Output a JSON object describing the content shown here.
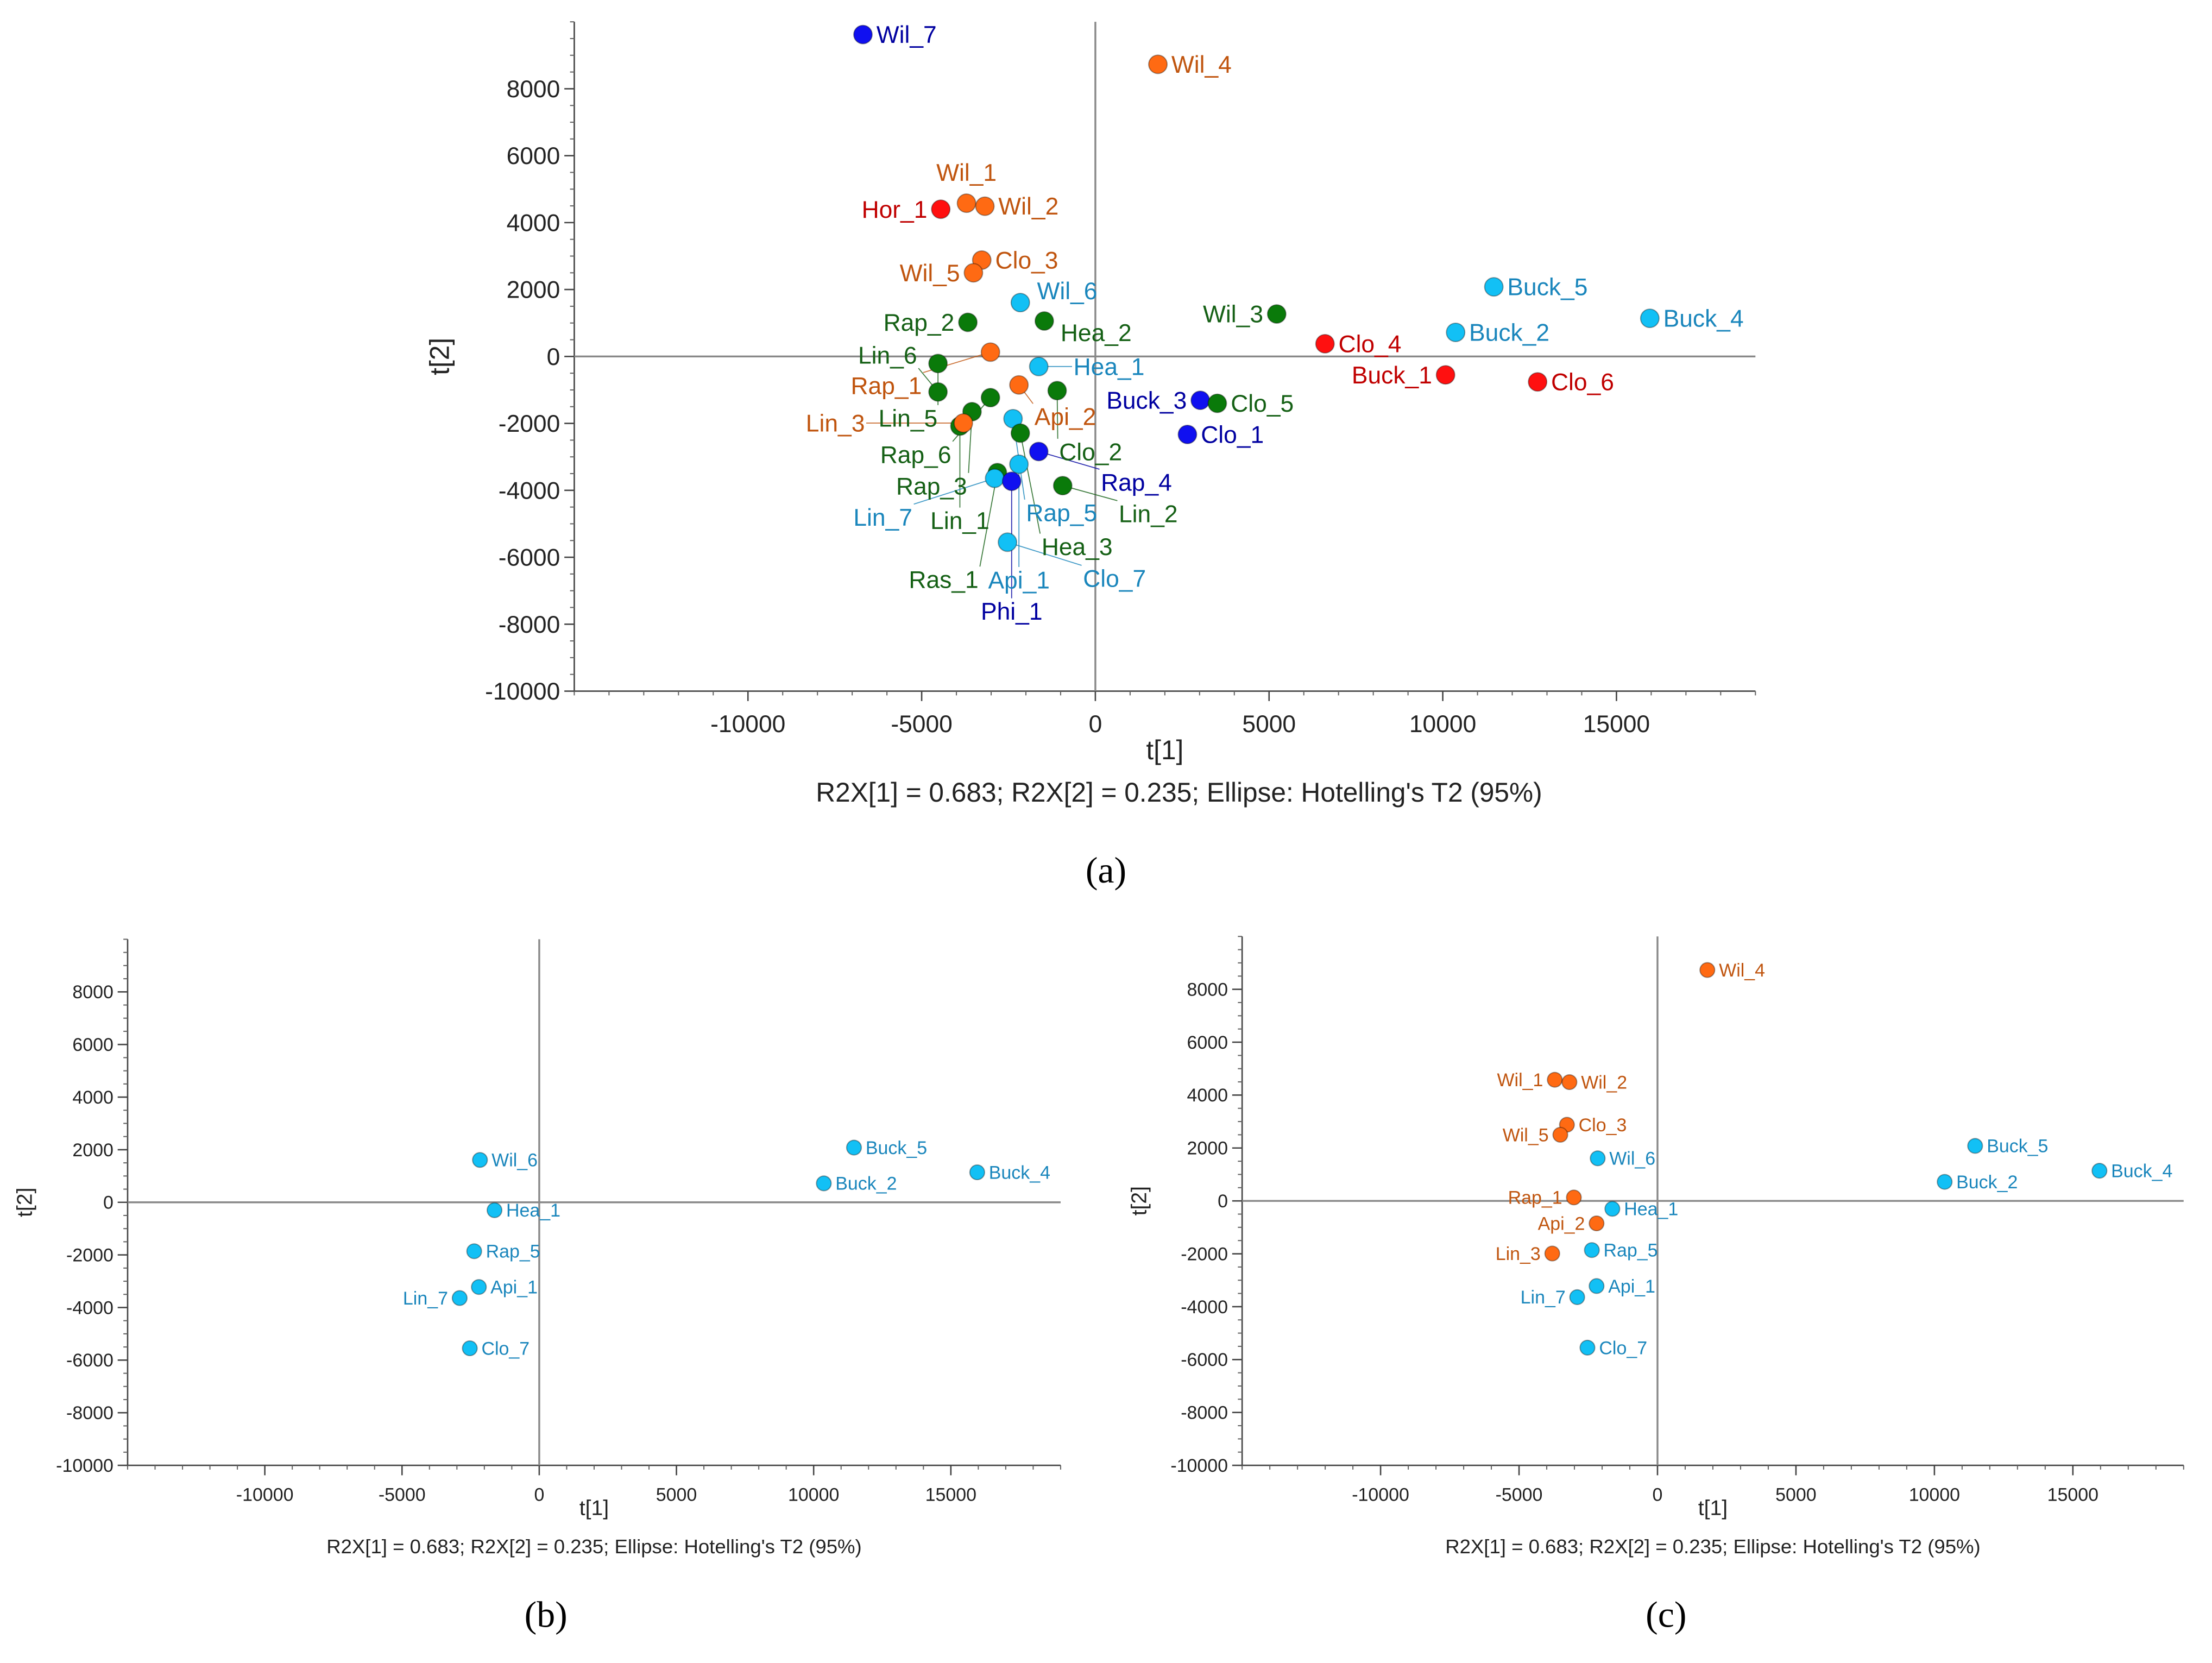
{
  "chart_data": [
    {
      "type": "scatter",
      "panel": "a",
      "caption": "(a)",
      "xlabel": "t[1]",
      "ylabel": "t[2]",
      "footer": "R2X[1] = 0.683; R2X[2] = 0.235; Ellipse: Hotelling's T2 (95%)",
      "xlim": [
        -15000,
        19000
      ],
      "ylim": [
        -10000,
        10000
      ],
      "xticks": [
        -10000,
        -5000,
        0,
        5000,
        10000,
        15000
      ],
      "xtick_labels": [
        "-10000",
        "-5000",
        "0",
        "5000",
        "10000",
        "15000"
      ],
      "yticks": [
        -10000,
        -8000,
        -6000,
        -4000,
        -2000,
        0,
        2000,
        4000,
        6000,
        8000
      ],
      "ytick_labels": [
        "-10000",
        "-8000",
        "-6000",
        "-4000",
        "-2000",
        "0",
        "2000",
        "4000",
        "6000",
        "8000"
      ],
      "points": [
        {
          "name": "Wil_7",
          "x": -6690,
          "y": 9620,
          "group": "blue",
          "label_side": "below"
        },
        {
          "name": "Wil_4",
          "x": 1800,
          "y": 8730,
          "group": "orange",
          "label_side": "right"
        },
        {
          "name": "Hor_1",
          "x": -4450,
          "y": 4400,
          "group": "red",
          "label_side": "left"
        },
        {
          "name": "Wil_1",
          "x": -3710,
          "y": 4580,
          "group": "orange",
          "label_side": "above"
        },
        {
          "name": "Wil_2",
          "x": -3180,
          "y": 4490,
          "group": "orange",
          "label_side": "right"
        },
        {
          "name": "Clo_3",
          "x": -3270,
          "y": 2880,
          "group": "orange",
          "label_side": "right"
        },
        {
          "name": "Wil_5",
          "x": -3510,
          "y": 2500,
          "group": "orange",
          "label_side": "left"
        },
        {
          "name": "Wil_6",
          "x": -2160,
          "y": 1610,
          "group": "cyan",
          "label_side": "right"
        },
        {
          "name": "Rap_2",
          "x": -3670,
          "y": 1020,
          "group": "green",
          "label_side": "left"
        },
        {
          "name": "Hea_2",
          "x": -1470,
          "y": 1060,
          "group": "green",
          "label_side": "right"
        },
        {
          "name": "Wil_3",
          "x": 5220,
          "y": 1270,
          "group": "green",
          "label_side": "left"
        },
        {
          "name": "Clo_4",
          "x": 6610,
          "y": 380,
          "group": "red",
          "label_side": "right"
        },
        {
          "name": "Buck_1",
          "x": 10080,
          "y": -550,
          "group": "red",
          "label_side": "left"
        },
        {
          "name": "Clo_6",
          "x": 12730,
          "y": -760,
          "group": "red",
          "label_side": "right"
        },
        {
          "name": "Buck_5",
          "x": 11470,
          "y": 2080,
          "group": "cyan",
          "label_side": "right"
        },
        {
          "name": "Buck_2",
          "x": 10370,
          "y": 720,
          "group": "cyan",
          "label_side": "right"
        },
        {
          "name": "Buck_4",
          "x": 15960,
          "y": 1140,
          "group": "cyan",
          "label_side": "right"
        },
        {
          "name": "Buck_3",
          "x": 3020,
          "y": -1310,
          "group": "blue",
          "label_side": "above"
        },
        {
          "name": "Clo_5",
          "x": 3510,
          "y": -1400,
          "group": "green",
          "label_side": "right"
        },
        {
          "name": "Clo_1",
          "x": 2650,
          "y": -2330,
          "group": "blue",
          "label_side": "right"
        },
        {
          "name": "Rap_1",
          "x": -3020,
          "y": 130,
          "group": "orange",
          "label_side": "right"
        },
        {
          "name": "Api_2",
          "x": -2200,
          "y": -850,
          "group": "orange",
          "label_side": "right"
        },
        {
          "name": "Hea_1",
          "x": -1630,
          "y": -300,
          "group": "cyan",
          "label_side": "right"
        },
        {
          "name": "Lin_5",
          "x": -4530,
          "y": -210,
          "group": "green",
          "label_side": "left"
        },
        {
          "name": "Lin_6",
          "x": -4530,
          "y": -1060,
          "group": "green",
          "label_side": "left"
        },
        {
          "name": "Rap_6",
          "x": -3020,
          "y": -1230,
          "group": "green",
          "label_side": "right"
        },
        {
          "name": "Rap_3",
          "x": -3550,
          "y": -1650,
          "group": "green",
          "label_side": "left"
        },
        {
          "name": "Lin_1",
          "x": -3900,
          "y": -2080,
          "group": "green",
          "label_side": "left"
        },
        {
          "name": "Lin_3",
          "x": -3800,
          "y": -1990,
          "group": "orange",
          "label_side": "left"
        },
        {
          "name": "Clo_2",
          "x": -1100,
          "y": -1020,
          "group": "green",
          "label_side": "right"
        },
        {
          "name": "Rap_5",
          "x": -2370,
          "y": -1860,
          "group": "cyan",
          "label_side": "left"
        },
        {
          "name": "Hea_3",
          "x": -2160,
          "y": -2290,
          "group": "green",
          "label_side": "right"
        },
        {
          "name": "Rap_4",
          "x": -1630,
          "y": -2840,
          "group": "blue",
          "label_side": "right"
        },
        {
          "name": "Api_1",
          "x": -2200,
          "y": -3220,
          "group": "cyan",
          "label_side": "right"
        },
        {
          "name": "Ras_1",
          "x": -2820,
          "y": -3470,
          "group": "green",
          "label_side": "left"
        },
        {
          "name": "Lin_7",
          "x": -2900,
          "y": -3640,
          "group": "cyan",
          "label_side": "left"
        },
        {
          "name": "Phi_1",
          "x": -2410,
          "y": -3730,
          "group": "blue",
          "label_side": "below"
        },
        {
          "name": "Lin_2",
          "x": -940,
          "y": -3860,
          "group": "green",
          "label_side": "right"
        },
        {
          "name": "Clo_7",
          "x": -2530,
          "y": -5550,
          "group": "cyan",
          "label_side": "right"
        }
      ]
    },
    {
      "type": "scatter",
      "panel": "b",
      "caption": "(b)",
      "xlabel": "t[1]",
      "ylabel": "t[2]",
      "footer": "R2X[1] = 0.683; R2X[2] = 0.235; Ellipse: Hotelling's T2 (95%)",
      "xlim": [
        -15000,
        19000
      ],
      "ylim": [
        -10000,
        10000
      ],
      "xticks": [
        -10000,
        -5000,
        0,
        5000,
        10000,
        15000
      ],
      "xtick_labels": [
        "-10000",
        "-5000",
        "0",
        "5000",
        "10000",
        "15000"
      ],
      "yticks": [
        -10000,
        -8000,
        -6000,
        -4000,
        -2000,
        0,
        2000,
        4000,
        6000,
        8000
      ],
      "ytick_labels": [
        "-10000",
        "-8000",
        "-6000",
        "-4000",
        "-2000",
        "0",
        "2000",
        "4000",
        "6000",
        "8000"
      ],
      "points": [
        {
          "name": "Wil_6",
          "x": -2160,
          "y": 1610,
          "group": "cyan",
          "label_side": "right"
        },
        {
          "name": "Hea_1",
          "x": -1630,
          "y": -300,
          "group": "cyan",
          "label_side": "right"
        },
        {
          "name": "Rap_5",
          "x": -2370,
          "y": -1860,
          "group": "cyan",
          "label_side": "right"
        },
        {
          "name": "Api_1",
          "x": -2200,
          "y": -3220,
          "group": "cyan",
          "label_side": "right"
        },
        {
          "name": "Lin_7",
          "x": -2900,
          "y": -3640,
          "group": "cyan",
          "label_side": "left"
        },
        {
          "name": "Clo_7",
          "x": -2530,
          "y": -5550,
          "group": "cyan",
          "label_side": "right"
        },
        {
          "name": "Buck_5",
          "x": 11470,
          "y": 2080,
          "group": "cyan",
          "label_side": "right"
        },
        {
          "name": "Buck_2",
          "x": 10370,
          "y": 720,
          "group": "cyan",
          "label_side": "right"
        },
        {
          "name": "Buck_4",
          "x": 15960,
          "y": 1140,
          "group": "cyan",
          "label_side": "right"
        }
      ]
    },
    {
      "type": "scatter",
      "panel": "c",
      "caption": "(c)",
      "xlabel": "t[1]",
      "ylabel": "t[2]",
      "footer": "R2X[1] = 0.683; R2X[2] = 0.235; Ellipse: Hotelling's T2 (95%)",
      "xlim": [
        -15000,
        19000
      ],
      "ylim": [
        -10000,
        10000
      ],
      "xticks": [
        -10000,
        -5000,
        0,
        5000,
        10000,
        15000
      ],
      "xtick_labels": [
        "-10000",
        "-5000",
        "0",
        "5000",
        "10000",
        "15000"
      ],
      "yticks": [
        -10000,
        -8000,
        -6000,
        -4000,
        -2000,
        0,
        2000,
        4000,
        6000,
        8000
      ],
      "ytick_labels": [
        "-10000",
        "-8000",
        "-6000",
        "-4000",
        "-2000",
        "0",
        "2000",
        "4000",
        "6000",
        "8000"
      ],
      "points": [
        {
          "name": "Wil_4",
          "x": 1800,
          "y": 8730,
          "group": "orange",
          "label_side": "right"
        },
        {
          "name": "Wil_1",
          "x": -3710,
          "y": 4580,
          "group": "orange",
          "label_side": "left"
        },
        {
          "name": "Wil_2",
          "x": -3180,
          "y": 4490,
          "group": "orange",
          "label_side": "right"
        },
        {
          "name": "Clo_3",
          "x": -3270,
          "y": 2880,
          "group": "orange",
          "label_side": "right"
        },
        {
          "name": "Wil_5",
          "x": -3510,
          "y": 2500,
          "group": "orange",
          "label_side": "left"
        },
        {
          "name": "Wil_6",
          "x": -2160,
          "y": 1610,
          "group": "cyan",
          "label_side": "right"
        },
        {
          "name": "Rap_1",
          "x": -3020,
          "y": 130,
          "group": "orange",
          "label_side": "left"
        },
        {
          "name": "Api_2",
          "x": -2200,
          "y": -850,
          "group": "orange",
          "label_side": "left"
        },
        {
          "name": "Hea_1",
          "x": -1630,
          "y": -300,
          "group": "cyan",
          "label_side": "right"
        },
        {
          "name": "Lin_3",
          "x": -3800,
          "y": -1990,
          "group": "orange",
          "label_side": "left"
        },
        {
          "name": "Rap_5",
          "x": -2370,
          "y": -1860,
          "group": "cyan",
          "label_side": "right"
        },
        {
          "name": "Api_1",
          "x": -2200,
          "y": -3220,
          "group": "cyan",
          "label_side": "right"
        },
        {
          "name": "Lin_7",
          "x": -2900,
          "y": -3640,
          "group": "cyan",
          "label_side": "left"
        },
        {
          "name": "Clo_7",
          "x": -2530,
          "y": -5550,
          "group": "cyan",
          "label_side": "right"
        },
        {
          "name": "Buck_5",
          "x": 11470,
          "y": 2080,
          "group": "cyan",
          "label_side": "right"
        },
        {
          "name": "Buck_2",
          "x": 10370,
          "y": 720,
          "group": "cyan",
          "label_side": "right"
        },
        {
          "name": "Buck_4",
          "x": 15960,
          "y": 1140,
          "group": "cyan",
          "label_side": "right"
        }
      ]
    }
  ],
  "colors": {
    "red": {
      "fill": "#ff1010",
      "text": "#c00000"
    },
    "orange": {
      "fill": "#ff6a13",
      "text": "#c0550f"
    },
    "green": {
      "fill": "#0a7a0a",
      "text": "#156015"
    },
    "cyan": {
      "fill": "#12c0f5",
      "text": "#1a86bc"
    },
    "blue": {
      "fill": "#1010f0",
      "text": "#0000a0"
    },
    "axis": "#888888"
  }
}
